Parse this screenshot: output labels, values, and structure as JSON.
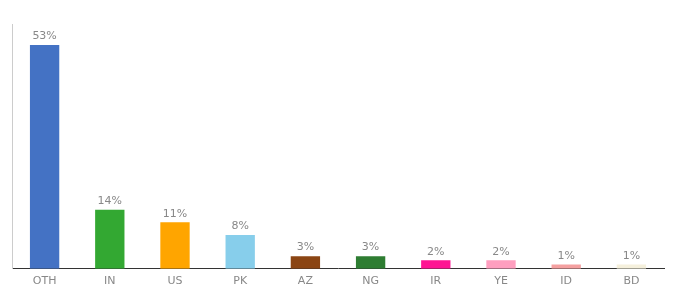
{
  "chart_data": {
    "type": "bar",
    "categories": [
      "OTH",
      "IN",
      "US",
      "PK",
      "AZ",
      "NG",
      "IR",
      "YE",
      "ID",
      "BD"
    ],
    "values": [
      53,
      14,
      11,
      8,
      3,
      3,
      2,
      2,
      1,
      1
    ],
    "value_labels": [
      "53%",
      "14%",
      "11%",
      "8%",
      "3%",
      "3%",
      "2%",
      "2%",
      "1%",
      "1%"
    ],
    "colors": [
      "#4472C4",
      "#33A832",
      "#FFA500",
      "#87CEEB",
      "#8B4513",
      "#2E7D32",
      "#FF1493",
      "#FF9EBF",
      "#F4A0A0",
      "#F5F0DC"
    ],
    "ylim": [
      0,
      58
    ],
    "grid": false,
    "data_labels": true,
    "tick_labels": "x"
  }
}
